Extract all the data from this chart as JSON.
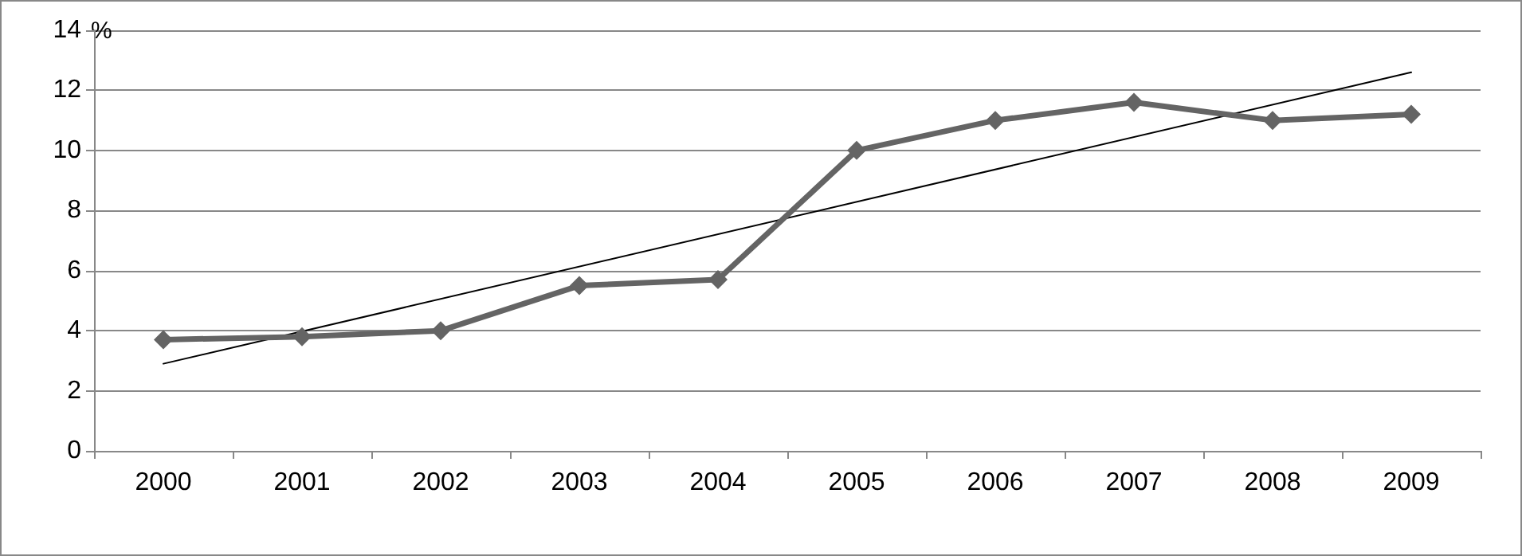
{
  "chart_data": {
    "type": "line",
    "ylabel": "%",
    "categories": [
      "2000",
      "2001",
      "2002",
      "2003",
      "2004",
      "2005",
      "2006",
      "2007",
      "2008",
      "2009"
    ],
    "series": [
      {
        "color": "#646464",
        "values": [
          3.7,
          3.8,
          4.0,
          5.5,
          5.7,
          10.0,
          11.0,
          11.6,
          11.0,
          11.2
        ],
        "marker": "diamond"
      },
      {
        "color": "#000000",
        "values": [
          2.9,
          null,
          null,
          null,
          null,
          null,
          null,
          null,
          null,
          12.6
        ],
        "marker": "none"
      }
    ],
    "ylim": [
      0,
      14
    ],
    "yticks": [
      0,
      2,
      4,
      6,
      8,
      10,
      12,
      14
    ],
    "grid": "y"
  }
}
